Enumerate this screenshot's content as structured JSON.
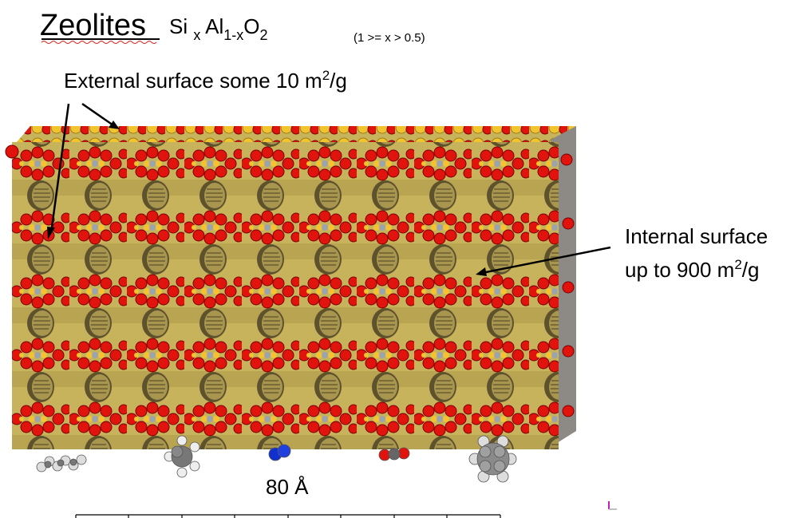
{
  "title": "Zeolites",
  "formula": {
    "si": "Si",
    "si_sub": "x",
    "al": "Al",
    "al_sub": "1-x",
    "o": "O",
    "o_sub": "2"
  },
  "condition": "(1 >= x > 0.5)",
  "external": {
    "text": "External surface some 10 m",
    "sup": "2",
    "unit": "/g"
  },
  "internal": {
    "line1": "Internal surface",
    "line2": "up to 900 m",
    "sup": "2",
    "unit": "/g"
  },
  "scale": "80 Å"
}
